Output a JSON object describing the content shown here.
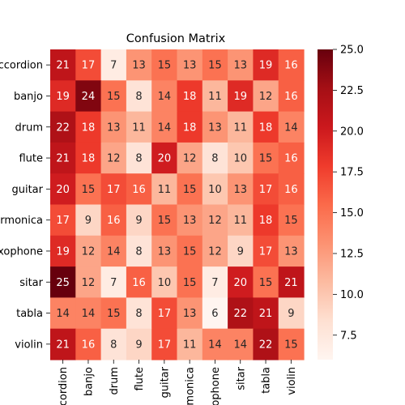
{
  "chart_data": {
    "type": "heatmap",
    "title": "Confusion Matrix",
    "xlabel": "",
    "ylabel": "",
    "rows": [
      "accordion",
      "banjo",
      "drum",
      "flute",
      "guitar",
      "harmonica",
      "saxophone",
      "sitar",
      "tabla",
      "violin"
    ],
    "columns": [
      "accordion",
      "banjo",
      "drum",
      "flute",
      "guitar",
      "harmonica",
      "saxophone",
      "sitar",
      "tabla",
      "violin"
    ],
    "values": [
      [
        21,
        17,
        7,
        13,
        15,
        13,
        15,
        13,
        19,
        16
      ],
      [
        19,
        24,
        15,
        8,
        14,
        18,
        11,
        19,
        12,
        16
      ],
      [
        22,
        18,
        13,
        11,
        14,
        18,
        13,
        11,
        18,
        14
      ],
      [
        21,
        18,
        12,
        8,
        20,
        12,
        8,
        10,
        15,
        16
      ],
      [
        20,
        15,
        17,
        16,
        11,
        15,
        10,
        13,
        17,
        16
      ],
      [
        17,
        9,
        16,
        9,
        15,
        13,
        12,
        11,
        18,
        15
      ],
      [
        19,
        12,
        14,
        8,
        13,
        15,
        12,
        9,
        17,
        13
      ],
      [
        25,
        12,
        7,
        16,
        10,
        15,
        7,
        20,
        15,
        21
      ],
      [
        14,
        14,
        15,
        8,
        17,
        13,
        6,
        22,
        21,
        9
      ],
      [
        21,
        16,
        8,
        9,
        17,
        11,
        14,
        14,
        22,
        15
      ]
    ],
    "colorbar": {
      "min": 6,
      "max": 25,
      "ticks": [
        7.5,
        10.0,
        12.5,
        15.0,
        17.5,
        20.0,
        22.5,
        25.0
      ],
      "tick_labels": [
        "7.5",
        "10.0",
        "12.5",
        "15.0",
        "17.5",
        "20.0",
        "22.5",
        "25.0"
      ]
    },
    "colormap": "Reds",
    "colormap_stops": [
      "#fff5f0",
      "#fee0d2",
      "#fcbba1",
      "#fc9272",
      "#fb6a4a",
      "#ef3b2c",
      "#cb181d",
      "#a50f15",
      "#67000d"
    ]
  }
}
